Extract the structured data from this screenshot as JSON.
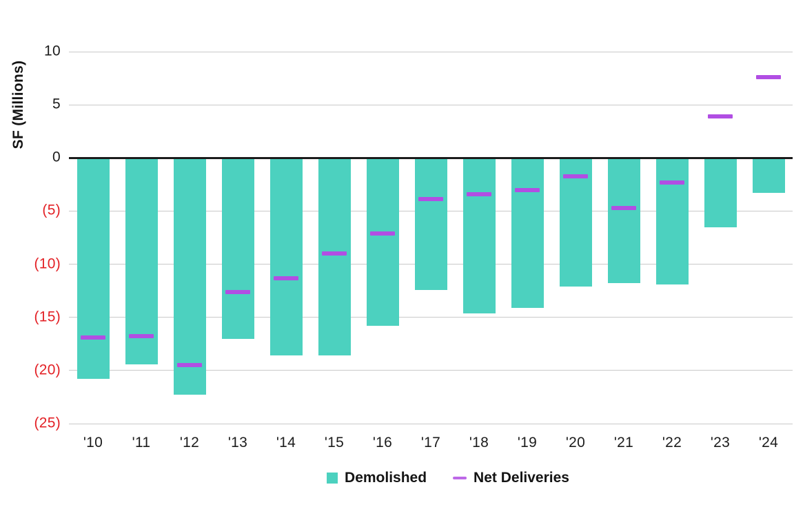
{
  "chart_data": {
    "type": "bar",
    "title": "",
    "xlabel": "",
    "ylabel": "SF (Millions)",
    "ylim": [
      -25,
      10
    ],
    "grid": true,
    "legend_position": "bottom",
    "categories": [
      "'10",
      "'11",
      "'12",
      "'13",
      "'14",
      "'15",
      "'16",
      "'17",
      "'18",
      "'19",
      "'20",
      "'21",
      "'22",
      "'23",
      "'24"
    ],
    "series": [
      {
        "name": "Demolished",
        "type": "bar",
        "color": "#4cd1bf",
        "values": [
          -20.8,
          -19.4,
          -22.3,
          -17.0,
          -18.6,
          -18.6,
          -15.8,
          -12.4,
          -14.6,
          -14.1,
          -12.1,
          -11.8,
          -11.9,
          -6.5,
          -3.3
        ]
      },
      {
        "name": "Net Deliveries",
        "type": "dash",
        "color": "#b14ee3",
        "values": [
          -16.9,
          -16.8,
          -19.5,
          -12.6,
          -11.3,
          -9.0,
          -7.1,
          -3.9,
          -3.4,
          -3.0,
          -1.7,
          -4.7,
          -2.3,
          3.9,
          7.6
        ]
      }
    ],
    "y_ticks": [
      {
        "value": 10,
        "label": "10"
      },
      {
        "value": 5,
        "label": "5"
      },
      {
        "value": 0,
        "label": "0"
      },
      {
        "value": -5,
        "label": "(5)"
      },
      {
        "value": -10,
        "label": "(10)"
      },
      {
        "value": -15,
        "label": "(15)"
      },
      {
        "value": -20,
        "label": "(20)"
      },
      {
        "value": -25,
        "label": "(25)"
      }
    ],
    "colors": {
      "negative_tick_text": "#e32126",
      "positive_tick_text": "#1c1c1c",
      "gridline": "#c9c9c9",
      "zero_line": "#1b1b1b"
    }
  }
}
